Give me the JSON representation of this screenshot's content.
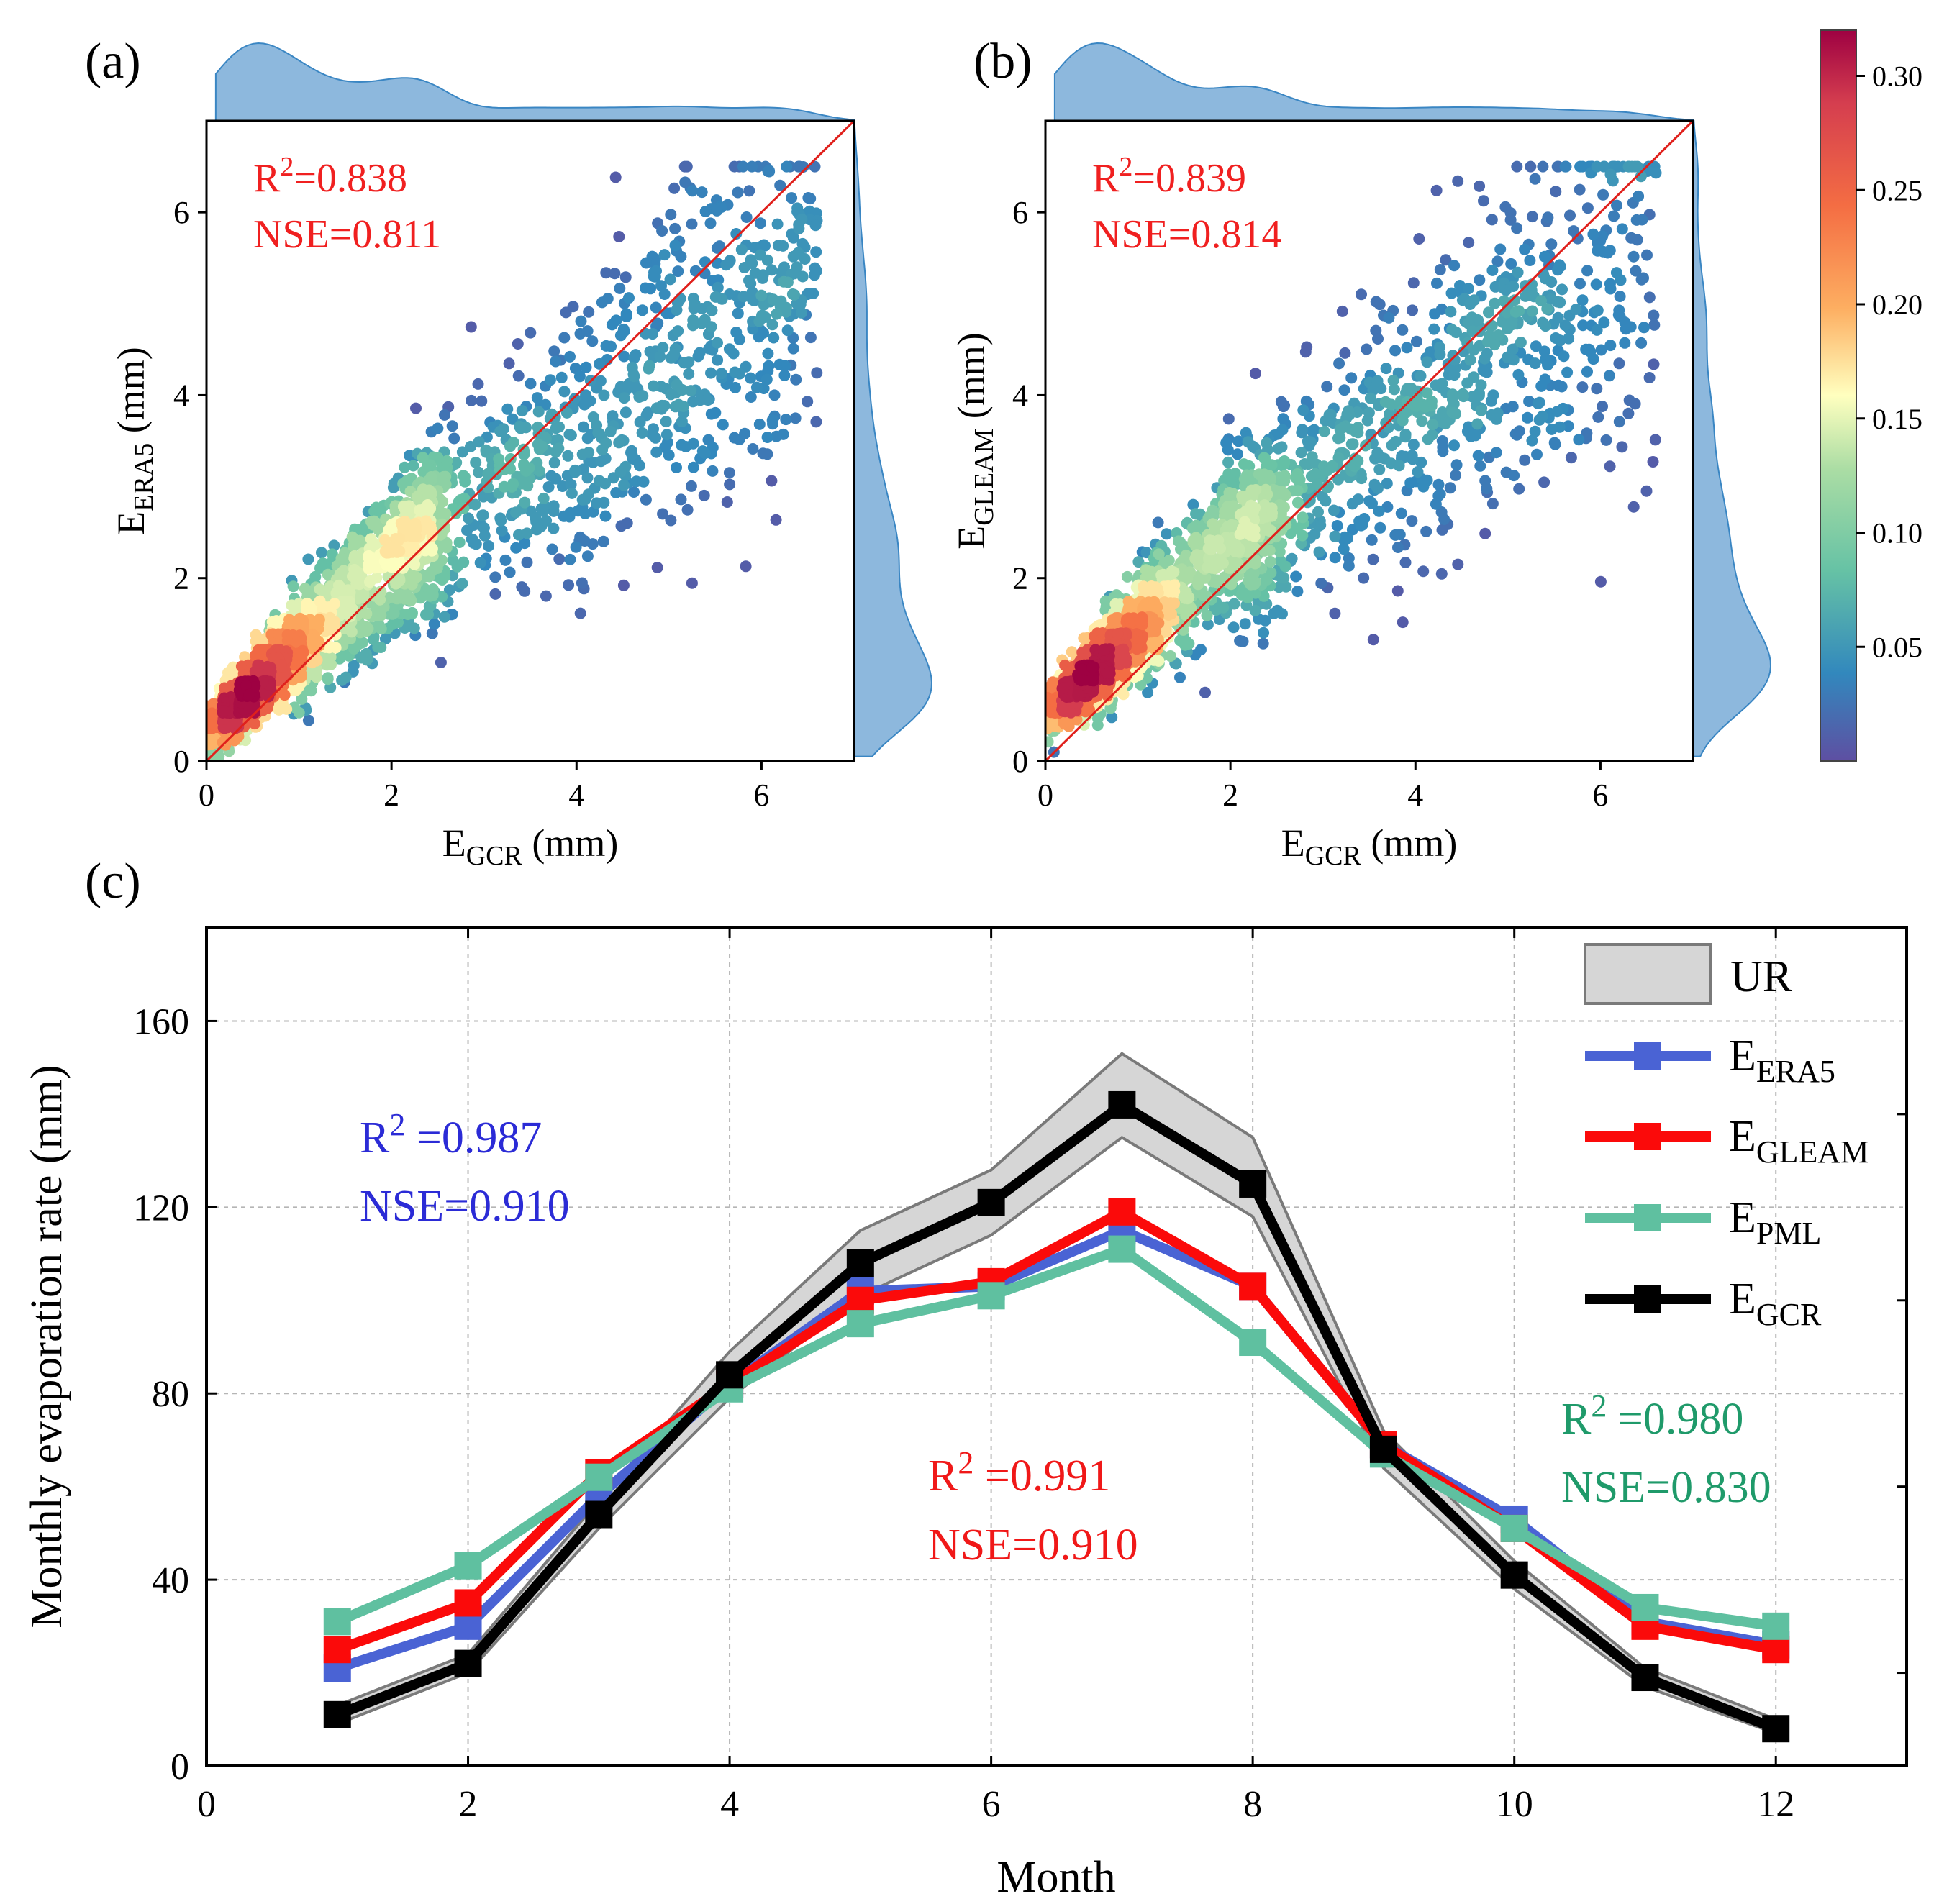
{
  "panels": {
    "a": {
      "label": "(a)",
      "x_label": "E",
      "x_sub": "GCR",
      "x_unit": " (mm)",
      "y_label": "E",
      "y_sub": "ERA5",
      "y_unit": " (mm)",
      "stat_r2_prefix": "R",
      "stat_r2_sup": "2",
      "stat_r2_value": "=0.838",
      "stat_nse": "NSE=0.811"
    },
    "b": {
      "label": "(b)",
      "x_label": "E",
      "x_sub": "GCR",
      "x_unit": " (mm)",
      "y_label": "E",
      "y_sub": "GLEAM",
      "y_unit": " (mm)",
      "stat_r2_prefix": "R",
      "stat_r2_sup": "2",
      "stat_r2_value": "=0.839",
      "stat_nse": "NSE=0.814"
    },
    "c": {
      "label": "(c)",
      "x_label": "Month",
      "y_label": "Monthly evaporation rate (mm)",
      "legend": [
        {
          "main": "UR",
          "sub": ""
        },
        {
          "main": "E",
          "sub": "ERA5"
        },
        {
          "main": "E",
          "sub": "GLEAM"
        },
        {
          "main": "E",
          "sub": "PML"
        },
        {
          "main": "E",
          "sub": "GCR"
        }
      ],
      "stats": [
        {
          "r2": " =0.987",
          "nse": "NSE=0.910",
          "color": "#2b2bd6"
        },
        {
          "r2": " =0.991",
          "nse": "NSE=0.910",
          "color": "#f01818"
        },
        {
          "r2": " =0.980",
          "nse": "NSE=0.830",
          "color": "#1f9a6a"
        }
      ]
    }
  },
  "colorbar": {
    "ticks": [
      "0.05",
      "0.10",
      "0.15",
      "0.20",
      "0.25",
      "0.30"
    ],
    "min": 0.0,
    "max": 0.32
  },
  "chart_data": [
    {
      "type": "scatter",
      "title": "(a)",
      "xlabel": "E_GCR (mm)",
      "ylabel": "E_ERA5 (mm)",
      "xlim": [
        0,
        7
      ],
      "ylim": [
        0,
        7
      ],
      "xticks": [
        0,
        2,
        4,
        6
      ],
      "yticks": [
        0,
        2,
        4,
        6
      ],
      "reference_line": "1:1",
      "annotation": [
        "R2=0.838",
        "NSE=0.811"
      ],
      "point_cloud": {
        "n_points": 2600,
        "dense_center": [
          0.6,
          0.9
        ],
        "seed": 11,
        "description": "density-colored points, highest density near (0.5, 0.9)"
      }
    },
    {
      "type": "scatter",
      "title": "(b)",
      "xlabel": "E_GCR (mm)",
      "ylabel": "E_GLEAM (mm)",
      "xlim": [
        0,
        7
      ],
      "ylim": [
        0,
        7
      ],
      "xticks": [
        0,
        2,
        4,
        6
      ],
      "yticks": [
        0,
        2,
        4,
        6
      ],
      "reference_line": "1:1",
      "annotation": [
        "R2=0.839",
        "NSE=0.814"
      ],
      "point_cloud": {
        "n_points": 2600,
        "dense_center": [
          0.5,
          1.0
        ],
        "seed": 23,
        "description": "density-colored points, highest density near (0.4, 1.0)"
      }
    },
    {
      "type": "line",
      "title": "(c)",
      "xlabel": "Month",
      "ylabel": "Monthly evaporation rate (mm)",
      "xlim": [
        0,
        13
      ],
      "ylim": [
        0,
        180
      ],
      "xticks": [
        0,
        2,
        4,
        6,
        8,
        10,
        12
      ],
      "yticks": [
        0,
        40,
        80,
        120,
        160
      ],
      "x": [
        1,
        2,
        3,
        4,
        5,
        6,
        7,
        8,
        9,
        10,
        11,
        12
      ],
      "series": [
        {
          "name": "E_ERA5",
          "color": "#4a63d4",
          "values": [
            21,
            30,
            58,
            82,
            102,
            103,
            115,
            103,
            69,
            53,
            31,
            26
          ]
        },
        {
          "name": "E_GLEAM",
          "color": "#fb0a0a",
          "values": [
            25,
            35,
            63,
            82,
            100,
            104,
            119,
            103,
            69,
            51,
            30,
            25
          ]
        },
        {
          "name": "E_PML",
          "color": "#5fc0a0",
          "values": [
            31,
            43,
            62,
            81,
            95,
            101,
            111,
            91,
            67,
            51,
            34,
            30
          ]
        },
        {
          "name": "E_GCR",
          "color": "#000000",
          "values": [
            11,
            22,
            54,
            84,
            108,
            121,
            142,
            125,
            68,
            41,
            19,
            8
          ]
        }
      ],
      "band": {
        "name": "UR",
        "color": "#d9d9d9",
        "upper": [
          13,
          24,
          57,
          89,
          115,
          128,
          153,
          135,
          72,
          44,
          21,
          10
        ],
        "lower": [
          9,
          20,
          51,
          79,
          101,
          114,
          135,
          118,
          64,
          38,
          17,
          7
        ]
      }
    }
  ]
}
